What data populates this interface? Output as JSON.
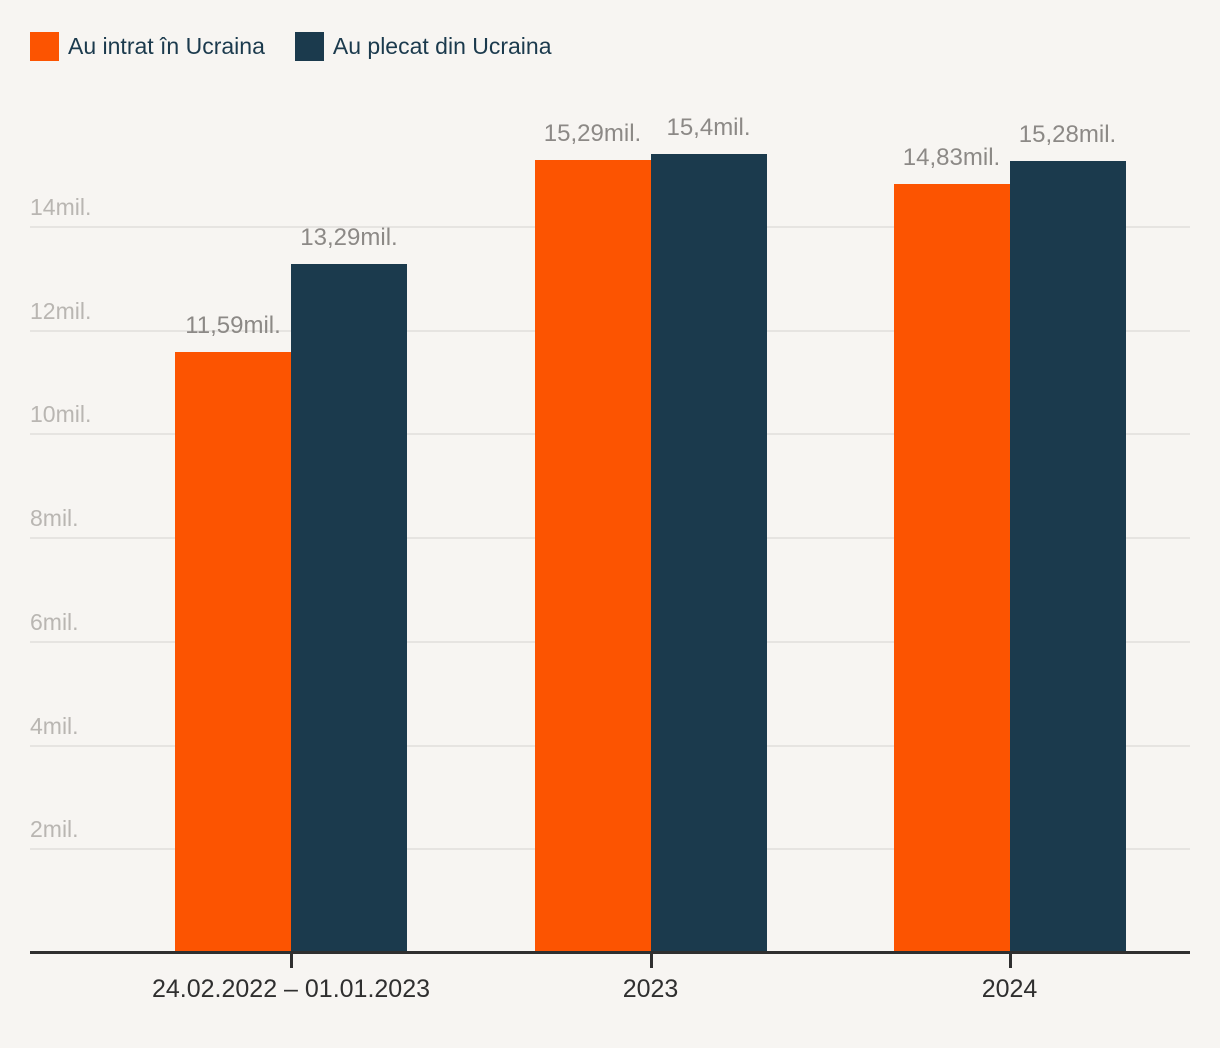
{
  "legend": {
    "items": [
      {
        "label": "Au intrat în Ucraina",
        "swatch": "orange-swatch"
      },
      {
        "label": "Au plecat din Ucraina",
        "swatch": "navy-swatch"
      }
    ]
  },
  "colors": {
    "background": "#f7f5f2",
    "series_in": "#fc5401",
    "series_out": "#1b3a4d",
    "gridline": "#e6e4e1",
    "y_tick_label": "#b9b6b2",
    "value_label": "#8c8986",
    "axis": "#2f2f2f"
  },
  "chart_data": {
    "type": "bar",
    "title": "",
    "categories": [
      "24.02.2022 – 01.01.2023",
      "2023",
      "2024"
    ],
    "series": [
      {
        "name": "Au intrat în Ucraina",
        "color": "#fc5401",
        "values": [
          11.59,
          15.29,
          14.83
        ],
        "value_labels": [
          "11,59mil.",
          "15,29mil.",
          "14,83mil."
        ]
      },
      {
        "name": "Au plecat din Ucraina",
        "color": "#1b3a4d",
        "values": [
          13.29,
          15.4,
          15.28
        ],
        "value_labels": [
          "13,29mil.",
          "15,4mil.",
          "15,28mil."
        ]
      }
    ],
    "unit": "mil.",
    "y_ticks": [
      2,
      4,
      6,
      8,
      10,
      12,
      14
    ],
    "y_tick_labels": [
      "2mil.",
      "4mil.",
      "6mil.",
      "8mil.",
      "10mil.",
      "12mil.",
      "14mil."
    ],
    "ylim": [
      0,
      16
    ],
    "grid": "horizontal",
    "legend_position": "top-left",
    "value_labels_shown": true
  }
}
